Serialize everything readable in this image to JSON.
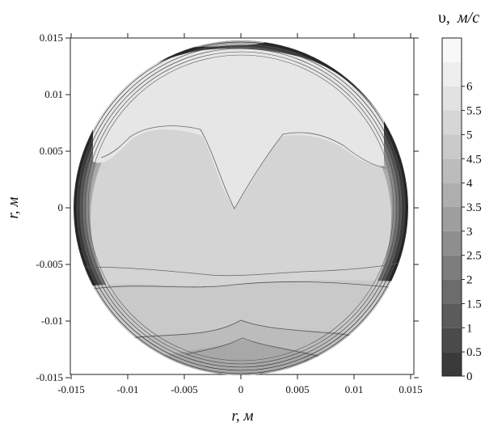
{
  "chart_data": {
    "type": "heatmap",
    "title": "",
    "xlabel": "r, м",
    "ylabel": "r, м",
    "xlim": [
      -0.0165,
      0.0165
    ],
    "ylim": [
      -0.016,
      0.016
    ],
    "x_ticks": [
      -0.015,
      -0.01,
      -0.005,
      0,
      0.005,
      0.01,
      0.015
    ],
    "x_tick_labels": [
      "-0.015",
      "-0.01",
      "-0.005",
      "0",
      "0.005",
      "0.01",
      "0.015"
    ],
    "y_ticks": [
      0.015,
      0.01,
      0.005,
      0,
      -0.005,
      -0.01,
      -0.015
    ],
    "y_tick_labels": [
      "0.015",
      "0.01",
      "0.005",
      "0",
      "-0.005",
      "-0.01",
      "-0.015"
    ],
    "domain_radius": 0.0155,
    "colorbar": {
      "title_symbol": "υ,",
      "title_unit": "м/с",
      "labels": [
        "6",
        "5.5",
        "5",
        "4.5",
        "4",
        "3.5",
        "3",
        "2.5",
        "2",
        "1.5",
        "1",
        "0.5",
        "0"
      ],
      "levels": [
        0,
        0.5,
        1,
        1.5,
        2,
        2.5,
        3,
        3.5,
        4,
        4.5,
        5,
        5.5,
        6,
        6.5
      ],
      "colors": [
        "#3a3a3a",
        "#4a4a4a",
        "#5b5b5b",
        "#6c6c6c",
        "#7d7d7d",
        "#8e8e8e",
        "#9e9e9e",
        "#aeaeae",
        "#bcbcbc",
        "#cacaca",
        "#d6d6d6",
        "#e2e2e2",
        "#eeeeee",
        "#f8f8f8"
      ]
    },
    "regions": [
      {
        "name": "core-upper",
        "level": 5.5,
        "color": "#e5e5e5"
      },
      {
        "name": "core-middle",
        "level": 5.0,
        "color": "#d6d6d6"
      },
      {
        "name": "lower-band",
        "level": 4.5,
        "color": "#cbcbcb"
      },
      {
        "name": "bottom-band",
        "level": 4.0,
        "color": "#bdbdbd"
      },
      {
        "name": "wall-layer",
        "level": 0.5,
        "color": "#3a3a3a"
      }
    ]
  }
}
